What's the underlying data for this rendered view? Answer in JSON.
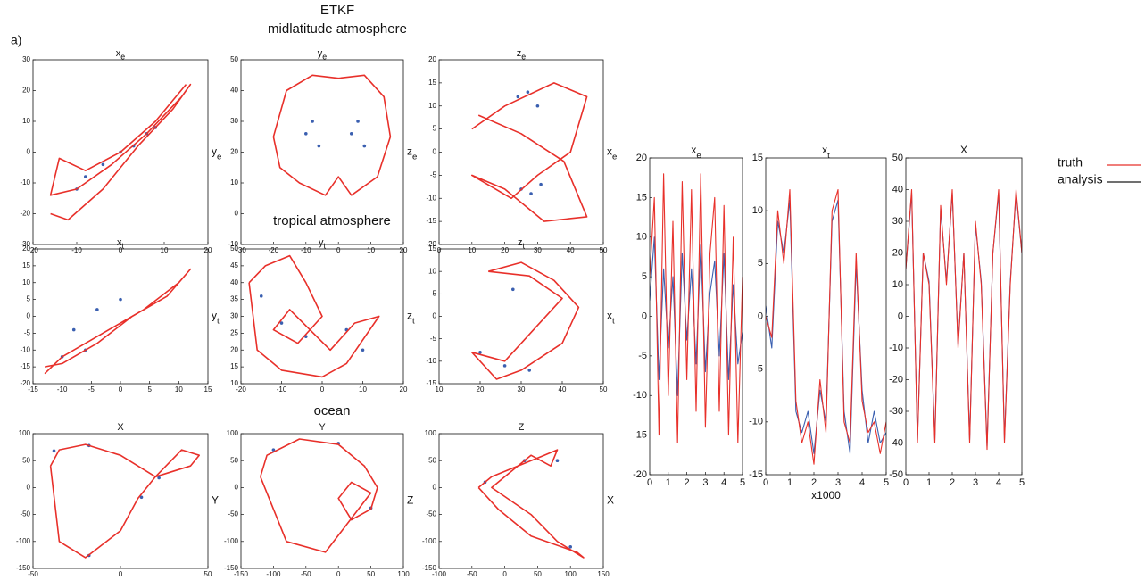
{
  "figure": {
    "panel_label": "a)",
    "title": "ETKF",
    "headings": [
      "midlatitude atmosphere",
      "tropical atmosphere",
      "ocean"
    ]
  },
  "legend": [
    {
      "name": "truth",
      "color": "#e8302a"
    },
    {
      "name": "analysis",
      "color": "#1a1a1a"
    }
  ],
  "chart_data": [
    {
      "type": "line",
      "title": "x",
      "title_sub": "e",
      "ylabel": "y",
      "ylabel_sub": "e",
      "xlim": [
        -20,
        20
      ],
      "xticks": [
        -20,
        -10,
        0,
        10,
        20
      ],
      "ylim": [
        -30,
        30
      ],
      "yticks": [
        -30,
        -20,
        -10,
        0,
        10,
        20,
        30
      ],
      "series": [
        {
          "color": "#3a5fb0",
          "mode": "markers",
          "x": [
            -10,
            -8,
            -4,
            0,
            3,
            6,
            8
          ],
          "values": [
            -12,
            -8,
            -4,
            0,
            2,
            6,
            8
          ]
        },
        {
          "color": "#e8302a",
          "mode": "lines",
          "x": [
            -16,
            -12,
            -4,
            4,
            12,
            16,
            14,
            6,
            -2,
            -10,
            -16,
            -14,
            -8,
            0,
            8,
            15
          ],
          "values": [
            -20,
            -22,
            -12,
            2,
            14,
            22,
            18,
            6,
            -4,
            -12,
            -14,
            -2,
            -6,
            0,
            10,
            22
          ]
        }
      ]
    },
    {
      "type": "line",
      "title": "y",
      "title_sub": "e",
      "ylabel": "z",
      "ylabel_sub": "e",
      "xlim": [
        -30,
        20
      ],
      "xticks": [
        -30,
        -20,
        -10,
        0,
        10,
        20
      ],
      "ylim": [
        -10,
        50
      ],
      "yticks": [
        -10,
        0,
        10,
        20,
        30,
        40,
        50
      ],
      "series": [
        {
          "color": "#3a5fb0",
          "mode": "markers",
          "x": [
            -10,
            -8,
            -6,
            4,
            6,
            8
          ],
          "values": [
            26,
            30,
            22,
            26,
            30,
            22
          ]
        },
        {
          "color": "#e8302a",
          "mode": "lines",
          "x": [
            -20,
            -16,
            -8,
            0,
            8,
            14,
            16,
            12,
            4,
            0,
            -4,
            -12,
            -18,
            -20
          ],
          "values": [
            25,
            40,
            45,
            44,
            45,
            38,
            25,
            12,
            6,
            12,
            6,
            10,
            15,
            25
          ]
        }
      ]
    },
    {
      "type": "line",
      "title": "z",
      "title_sub": "e",
      "ylabel": "x",
      "ylabel_sub": "e",
      "xlim": [
        0,
        50
      ],
      "xticks": [
        0,
        10,
        20,
        30,
        40,
        50
      ],
      "ylim": [
        -20,
        20
      ],
      "yticks": [
        -20,
        -15,
        -10,
        -5,
        0,
        5,
        10,
        15,
        20
      ],
      "series": [
        {
          "color": "#3a5fb0",
          "mode": "markers",
          "x": [
            24,
            27,
            30,
            25,
            28,
            31
          ],
          "values": [
            12,
            13,
            10,
            -8,
            -9,
            -7
          ]
        },
        {
          "color": "#e8302a",
          "mode": "lines",
          "x": [
            10,
            20,
            35,
            45,
            40,
            30,
            22,
            10,
            20,
            32,
            45,
            38,
            25,
            12
          ],
          "values": [
            5,
            10,
            15,
            12,
            0,
            -5,
            -10,
            -5,
            -8,
            -15,
            -14,
            -2,
            4,
            8
          ]
        }
      ]
    },
    {
      "type": "line",
      "title": "x",
      "title_sub": "t",
      "ylabel": "y",
      "ylabel_sub": "t",
      "xlim": [
        -15,
        15
      ],
      "xticks": [
        -15,
        -10,
        -5,
        0,
        5,
        10,
        15
      ],
      "ylim": [
        -20,
        20
      ],
      "yticks": [
        -20,
        -15,
        -10,
        -5,
        0,
        5,
        10,
        15,
        20
      ],
      "series": [
        {
          "color": "#3a5fb0",
          "mode": "markers",
          "x": [
            -8,
            -4,
            0,
            -6,
            -10
          ],
          "values": [
            -4,
            2,
            5,
            -10,
            -12
          ]
        },
        {
          "color": "#e8302a",
          "mode": "lines",
          "x": [
            -13,
            -10,
            -6,
            -2,
            4,
            10,
            12,
            8,
            2,
            -4,
            -10,
            -13
          ],
          "values": [
            -17,
            -12,
            -8,
            -4,
            2,
            10,
            14,
            6,
            0,
            -8,
            -14,
            -15
          ]
        }
      ]
    },
    {
      "type": "line",
      "title": "y",
      "title_sub": "t",
      "ylabel": "z",
      "ylabel_sub": "t",
      "xlim": [
        -20,
        20
      ],
      "xticks": [
        -20,
        -10,
        0,
        10,
        20
      ],
      "ylim": [
        10,
        50
      ],
      "yticks": [
        10,
        15,
        20,
        25,
        30,
        35,
        40,
        45,
        50
      ],
      "series": [
        {
          "color": "#3a5fb0",
          "mode": "markers",
          "x": [
            -15,
            -10,
            -4,
            6,
            10
          ],
          "values": [
            36,
            28,
            24,
            26,
            20
          ]
        },
        {
          "color": "#e8302a",
          "mode": "lines",
          "x": [
            -18,
            -14,
            -8,
            -4,
            0,
            -6,
            -12,
            -8,
            2,
            8,
            14,
            6,
            0,
            -10,
            -16,
            -18
          ],
          "values": [
            40,
            45,
            48,
            40,
            30,
            22,
            26,
            32,
            20,
            28,
            30,
            16,
            12,
            14,
            20,
            40
          ]
        }
      ]
    },
    {
      "type": "line",
      "title": "z",
      "title_sub": "t",
      "ylabel": "x",
      "ylabel_sub": "t",
      "xlim": [
        10,
        50
      ],
      "xticks": [
        10,
        20,
        30,
        40,
        50
      ],
      "ylim": [
        -15,
        15
      ],
      "yticks": [
        -15,
        -10,
        -5,
        0,
        5,
        10,
        15
      ],
      "series": [
        {
          "color": "#3a5fb0",
          "mode": "markers",
          "x": [
            20,
            26,
            32,
            28
          ],
          "values": [
            -8,
            -11,
            -12,
            6
          ]
        },
        {
          "color": "#e8302a",
          "mode": "lines",
          "x": [
            22,
            30,
            38,
            44,
            40,
            30,
            24,
            18,
            26,
            34,
            40,
            32,
            22
          ],
          "values": [
            10,
            12,
            8,
            2,
            -6,
            -12,
            -14,
            -8,
            -10,
            -2,
            4,
            9,
            10
          ]
        }
      ]
    },
    {
      "type": "line",
      "title": "X",
      "ylabel": "Y",
      "xlim": [
        -50,
        50
      ],
      "xticks": [
        -50,
        0,
        50
      ],
      "ylim": [
        -150,
        100
      ],
      "yticks": [
        -150,
        -100,
        -50,
        0,
        50,
        100
      ],
      "series": [
        {
          "color": "#3a5fb0",
          "mode": "markers",
          "x": [
            -38,
            -18,
            22,
            12,
            -18
          ],
          "values": [
            68,
            78,
            18,
            -18,
            -126
          ]
        },
        {
          "color": "#e8302a",
          "mode": "lines",
          "x": [
            -40,
            -35,
            -20,
            0,
            20,
            40,
            45,
            35,
            20,
            10,
            0,
            -20,
            -35,
            -40
          ],
          "values": [
            40,
            70,
            80,
            60,
            20,
            40,
            60,
            70,
            20,
            -20,
            -80,
            -130,
            -100,
            40
          ]
        }
      ]
    },
    {
      "type": "line",
      "title": "Y",
      "ylabel": "Z",
      "xlim": [
        -150,
        100
      ],
      "xticks": [
        -150,
        -100,
        -50,
        0,
        50,
        100
      ],
      "ylim": [
        -150,
        100
      ],
      "yticks": [
        -150,
        -100,
        -50,
        0,
        50,
        100
      ],
      "series": [
        {
          "color": "#3a5fb0",
          "mode": "markers",
          "x": [
            -100,
            0,
            50,
            20
          ],
          "values": [
            70,
            82,
            -38,
            -58
          ]
        },
        {
          "color": "#e8302a",
          "mode": "lines",
          "x": [
            -120,
            -110,
            -60,
            0,
            40,
            60,
            50,
            20,
            0,
            20,
            50,
            -20,
            -80,
            -120
          ],
          "values": [
            20,
            60,
            90,
            80,
            40,
            0,
            -40,
            -60,
            -20,
            10,
            -10,
            -120,
            -100,
            20
          ]
        }
      ]
    },
    {
      "type": "line",
      "title": "Z",
      "ylabel": "X",
      "xlim": [
        -100,
        150
      ],
      "xticks": [
        -100,
        -50,
        0,
        50,
        100,
        150
      ],
      "ylim": [
        -150,
        100
      ],
      "yticks": [
        -150,
        -100,
        -50,
        0,
        50,
        100
      ],
      "series": [
        {
          "color": "#3a5fb0",
          "mode": "markers",
          "x": [
            -30,
            30,
            80,
            100
          ],
          "values": [
            10,
            50,
            50,
            -110
          ]
        },
        {
          "color": "#e8302a",
          "mode": "lines",
          "x": [
            -40,
            -20,
            20,
            60,
            80,
            70,
            40,
            0,
            -20,
            40,
            80,
            120,
            110,
            40,
            -10,
            -40
          ],
          "values": [
            0,
            20,
            40,
            60,
            70,
            40,
            60,
            20,
            0,
            -50,
            -100,
            -130,
            -120,
            -90,
            -40,
            0
          ]
        }
      ]
    },
    {
      "type": "line",
      "title": "x",
      "title_sub": "e",
      "xlim": [
        0,
        5
      ],
      "xticks": [
        0,
        1,
        2,
        3,
        4,
        5
      ],
      "ylim": [
        -20,
        20
      ],
      "yticks": [
        -20,
        -15,
        -10,
        -5,
        0,
        5,
        10,
        15,
        20
      ],
      "x": [
        0,
        0.25,
        0.5,
        0.75,
        1,
        1.25,
        1.5,
        1.75,
        2,
        2.25,
        2.5,
        2.75,
        3,
        3.25,
        3.5,
        3.75,
        4,
        4.25,
        4.5,
        4.75,
        5
      ],
      "series": [
        {
          "name": "analysis",
          "color": "#3a5fb0",
          "values": [
            2,
            10,
            -8,
            6,
            -4,
            5,
            -10,
            8,
            -3,
            6,
            -6,
            9,
            -7,
            3,
            7,
            -5,
            8,
            -8,
            4,
            -6,
            -2
          ]
        },
        {
          "name": "truth",
          "color": "#e8302a",
          "values": [
            5,
            15,
            -15,
            18,
            -10,
            12,
            -16,
            17,
            -8,
            16,
            -12,
            18,
            -14,
            8,
            15,
            -12,
            14,
            -15,
            10,
            -16,
            5
          ]
        }
      ]
    },
    {
      "type": "line",
      "title": "x",
      "title_sub": "t",
      "xlabel": "x1000",
      "xlim": [
        0,
        5
      ],
      "xticks": [
        0,
        1,
        2,
        3,
        4,
        5
      ],
      "ylim": [
        -15,
        15
      ],
      "yticks": [
        -15,
        -10,
        -5,
        0,
        5,
        10,
        15
      ],
      "x": [
        0,
        0.25,
        0.5,
        0.75,
        1,
        1.25,
        1.5,
        1.75,
        2,
        2.25,
        2.5,
        2.75,
        3,
        3.25,
        3.5,
        3.75,
        4,
        4.25,
        4.5,
        4.75,
        5
      ],
      "series": [
        {
          "name": "analysis",
          "color": "#3a5fb0",
          "values": [
            1,
            -3,
            9,
            6,
            11,
            -9,
            -11,
            -9,
            -13,
            -7,
            -10,
            9,
            11,
            -9,
            -13,
            5,
            -7,
            -12,
            -9,
            -12,
            -11
          ]
        },
        {
          "name": "truth",
          "color": "#e8302a",
          "values": [
            0,
            -2,
            10,
            5,
            12,
            -8,
            -12,
            -10,
            -14,
            -6,
            -11,
            10,
            12,
            -10,
            -12,
            6,
            -8,
            -11,
            -10,
            -13,
            -10
          ]
        }
      ]
    },
    {
      "type": "line",
      "title": "X",
      "xlim": [
        0,
        5
      ],
      "xticks": [
        0,
        1,
        2,
        3,
        4,
        5
      ],
      "ylim": [
        -50,
        50
      ],
      "yticks": [
        -50,
        -40,
        -30,
        -20,
        -10,
        0,
        10,
        20,
        30,
        40,
        50
      ],
      "x": [
        0,
        0.25,
        0.5,
        0.75,
        1,
        1.25,
        1.5,
        1.75,
        2,
        2.25,
        2.5,
        2.75,
        3,
        3.25,
        3.5,
        3.75,
        4,
        4.25,
        4.5,
        4.75,
        5
      ],
      "series": [
        {
          "name": "analysis",
          "color": "#3a5fb0",
          "values": [
            15,
            39,
            -39,
            20,
            11,
            -39,
            34,
            11,
            39,
            -9,
            20,
            -39,
            29,
            11,
            -41,
            20,
            39,
            -39,
            11,
            39,
            20
          ]
        },
        {
          "name": "truth",
          "color": "#e8302a",
          "values": [
            15,
            40,
            -40,
            20,
            10,
            -40,
            35,
            10,
            40,
            -10,
            20,
            -40,
            30,
            10,
            -42,
            20,
            40,
            -40,
            10,
            40,
            20
          ]
        }
      ]
    }
  ]
}
